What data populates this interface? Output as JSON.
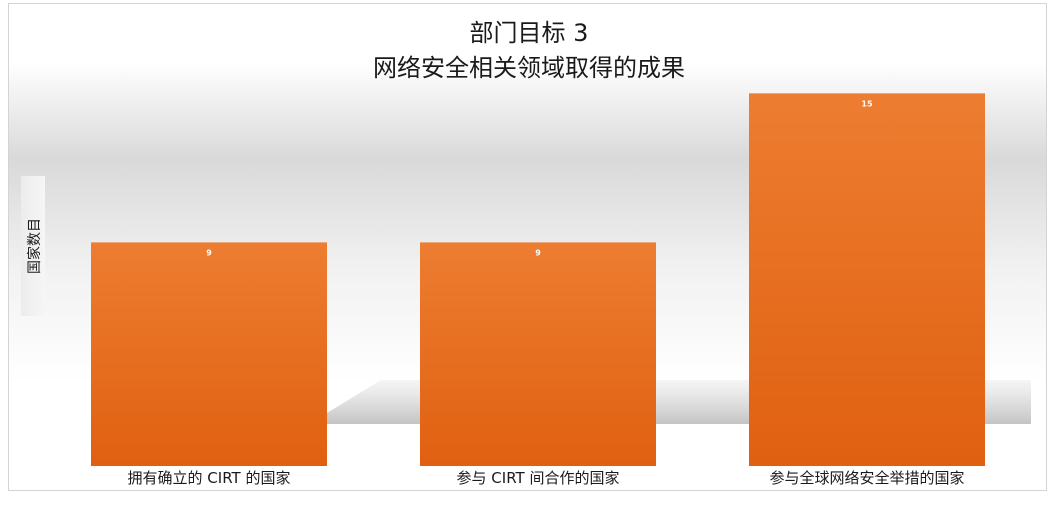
{
  "chart_data": {
    "type": "bar",
    "title": "部门目标 3",
    "subtitle": "网络安全相关领域取得的成果",
    "ylabel": "国家数目",
    "xlabel": "",
    "categories": [
      "拥有确立的 CIRT 的国家",
      "参与 CIRT 间合作的国家",
      "参与全球网络安全举措的国家"
    ],
    "values": [
      9,
      9,
      15
    ],
    "data_labels": [
      "9",
      "9",
      "15"
    ],
    "ylim": [
      0,
      16.1
    ],
    "grid": false,
    "legend": "none",
    "bar_color_top": "#ED7D31",
    "bar_color_bottom": "#E06010",
    "data_label_color": "#ffffff"
  }
}
